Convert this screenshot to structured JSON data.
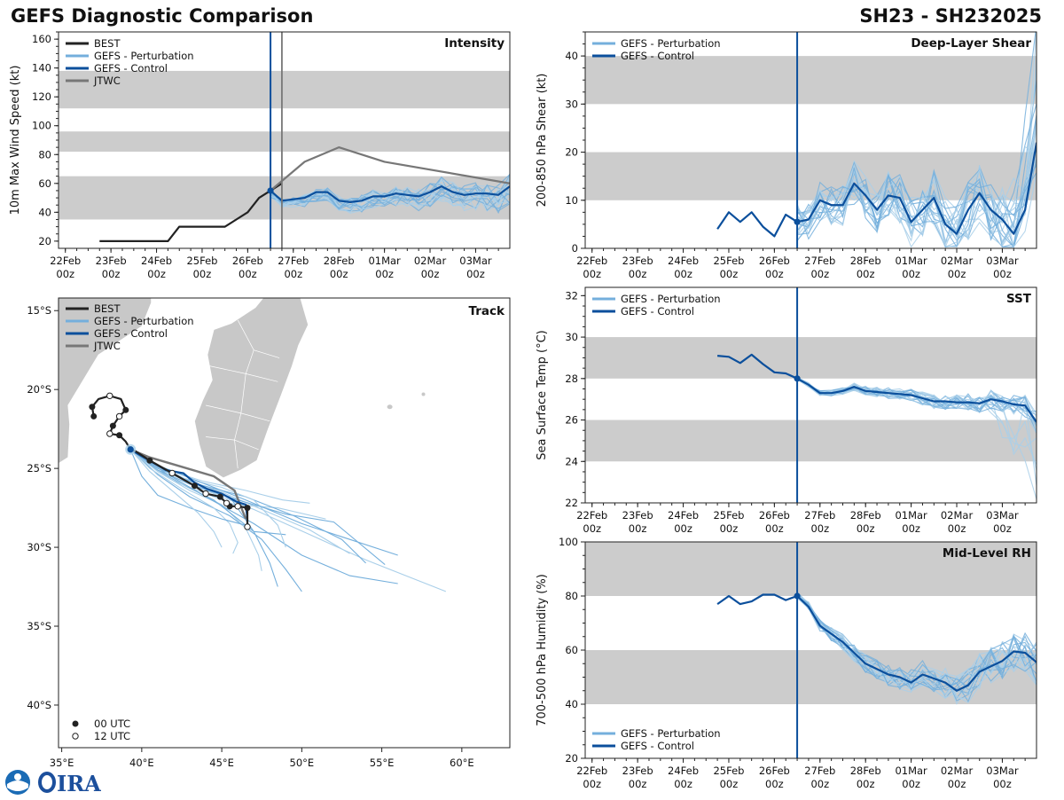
{
  "header": {
    "title_left": "GEFS Diagnostic Comparison",
    "title_right": "SH23 - SH232025"
  },
  "colors": {
    "best": "#222222",
    "perturbation": "#74afdc",
    "perturbation_thin": "#a9cfe9",
    "control": "#0b4f9c",
    "jtwc": "#777777",
    "band": "#cccccc",
    "land": "#c8c8c8"
  },
  "time_axis": {
    "labels_top": [
      "22Feb",
      "23Feb",
      "24Feb",
      "25Feb",
      "26Feb",
      "27Feb",
      "28Feb",
      "01Mar",
      "02Mar",
      "03Mar"
    ],
    "labels_bottom": "00z",
    "range_days": [
      -0.15,
      9.75
    ],
    "analysis_day": 4.5
  },
  "legend": {
    "best": "BEST",
    "perturbation": "GEFS - Perturbation",
    "control": "GEFS - Control",
    "jtwc": "JTWC",
    "utc00": "00 UTC",
    "utc12": "12 UTC"
  },
  "chart_data": [
    {
      "id": "intensity",
      "type": "line",
      "title": "Intensity",
      "ylabel": "10m Max Wind Speed (kt)",
      "ylim": [
        15,
        165
      ],
      "yticks": [
        20,
        40,
        60,
        80,
        100,
        120,
        140,
        160
      ],
      "bands": [
        [
          35,
          65
        ],
        [
          82,
          96
        ],
        [
          112,
          138
        ]
      ],
      "jtwc_issue_day": 4.75,
      "series": [
        {
          "name": "BEST",
          "x": [
            0.75,
            1.0,
            1.25,
            1.5,
            1.75,
            2.0,
            2.25,
            2.5,
            2.75,
            3.0,
            3.25,
            3.5,
            3.75,
            4.0,
            4.25,
            4.5,
            4.75
          ],
          "values": [
            20,
            20,
            20,
            20,
            20,
            20,
            20,
            30,
            30,
            30,
            30,
            30,
            35,
            40,
            50,
            55,
            60
          ]
        },
        {
          "name": "GEFS - Control",
          "x": [
            4.5,
            4.75,
            5.0,
            5.25,
            5.5,
            5.75,
            6.0,
            6.25,
            6.5,
            6.75,
            7.0,
            7.25,
            7.5,
            7.75,
            8.0,
            8.25,
            8.5,
            8.75,
            9.0,
            9.25,
            9.5,
            9.75
          ],
          "values": [
            55,
            48,
            49,
            50,
            54,
            54,
            48,
            47,
            48,
            51,
            51,
            53,
            52,
            51,
            54,
            58,
            54,
            52,
            53,
            53,
            52,
            58
          ]
        },
        {
          "name": "JTWC",
          "x": [
            4.5,
            5.25,
            6.0,
            7.0,
            9.75
          ],
          "values": [
            55,
            75,
            85,
            75,
            60
          ]
        }
      ]
    },
    {
      "id": "shear",
      "type": "line",
      "title": "Deep-Layer Shear",
      "ylabel": "200-850 hPa Shear (kt)",
      "ylim": [
        0,
        45
      ],
      "yticks": [
        0,
        10,
        20,
        30,
        40
      ],
      "bands": [
        [
          10,
          20
        ],
        [
          30,
          40
        ]
      ],
      "series": [
        {
          "name": "GEFS - Control",
          "x": [
            2.75,
            3.0,
            3.25,
            3.5,
            3.75,
            4.0,
            4.25,
            4.5,
            4.75,
            5.0,
            5.25,
            5.5,
            5.75,
            6.0,
            6.25,
            6.5,
            6.75,
            7.0,
            7.25,
            7.5,
            7.75,
            8.0,
            8.25,
            8.5,
            8.75,
            9.0,
            9.25,
            9.5,
            9.75
          ],
          "values": [
            4,
            7.5,
            5.5,
            7.5,
            4.5,
            2.5,
            7,
            5.5,
            6,
            10,
            9,
            9,
            13.5,
            11,
            8,
            11,
            10.5,
            5.5,
            8,
            10.5,
            5,
            3,
            8,
            11.5,
            8,
            6,
            3,
            8,
            22
          ]
        }
      ]
    },
    {
      "id": "sst",
      "type": "line",
      "title": "SST",
      "ylabel": "Sea Surface Temp (°C)",
      "ylim": [
        22,
        32.4
      ],
      "yticks": [
        22,
        24,
        26,
        28,
        30,
        32
      ],
      "bands": [
        [
          24,
          26
        ],
        [
          28,
          30
        ]
      ],
      "series": [
        {
          "name": "GEFS - Control",
          "x": [
            2.75,
            3.0,
            3.25,
            3.5,
            3.75,
            4.0,
            4.25,
            4.5,
            4.75,
            5.0,
            5.25,
            5.5,
            5.75,
            6.0,
            6.25,
            6.5,
            6.75,
            7.0,
            7.25,
            7.5,
            7.75,
            8.0,
            8.25,
            8.5,
            8.75,
            9.0,
            9.25,
            9.5,
            9.75
          ],
          "values": [
            29.1,
            29.05,
            28.75,
            29.15,
            28.7,
            28.3,
            28.25,
            28.0,
            27.7,
            27.3,
            27.3,
            27.4,
            27.6,
            27.4,
            27.35,
            27.3,
            27.25,
            27.2,
            27.05,
            26.9,
            26.9,
            26.85,
            26.85,
            26.8,
            27.0,
            26.9,
            26.75,
            26.7,
            25.9
          ]
        }
      ]
    },
    {
      "id": "rh",
      "type": "line",
      "title": "Mid-Level RH",
      "ylabel": "700-500 hPa Humidity (%)",
      "ylim": [
        20,
        100
      ],
      "yticks": [
        20,
        40,
        60,
        80,
        100
      ],
      "bands": [
        [
          40,
          60
        ],
        [
          80,
          100
        ]
      ],
      "series": [
        {
          "name": "GEFS - Control",
          "x": [
            2.75,
            3.0,
            3.25,
            3.5,
            3.75,
            4.0,
            4.25,
            4.5,
            4.75,
            5.0,
            5.25,
            5.5,
            5.75,
            6.0,
            6.25,
            6.5,
            6.75,
            7.0,
            7.25,
            7.5,
            7.75,
            8.0,
            8.25,
            8.5,
            8.75,
            9.0,
            9.25,
            9.5,
            9.75
          ],
          "values": [
            77,
            80,
            77,
            78,
            80.5,
            80.5,
            78.5,
            80,
            76,
            69,
            66,
            63,
            59,
            55,
            53,
            51,
            50,
            48,
            51,
            49.5,
            48,
            45,
            47,
            52,
            54,
            56,
            59.5,
            59,
            55.5
          ]
        }
      ]
    },
    {
      "id": "track",
      "type": "scatter",
      "title": "Track",
      "lon_range": [
        34.8,
        63
      ],
      "lat_range": [
        -42.7,
        -14.2
      ],
      "lon_ticks": [
        "35°E",
        "40°E",
        "45°E",
        "50°E",
        "55°E",
        "60°E"
      ],
      "lon_tick_values": [
        35,
        40,
        45,
        50,
        55,
        60
      ],
      "lat_ticks": [
        "15°S",
        "20°S",
        "25°S",
        "30°S",
        "35°S",
        "40°S"
      ],
      "lat_tick_values": [
        -15,
        -20,
        -25,
        -30,
        -35,
        -40
      ],
      "best_track": [
        [
          37.0,
          -21.7
        ],
        [
          36.9,
          -21.1
        ],
        [
          37.3,
          -20.6
        ],
        [
          38.0,
          -20.4
        ],
        [
          38.7,
          -20.6
        ],
        [
          39.0,
          -21.3
        ],
        [
          38.6,
          -21.7
        ],
        [
          38.2,
          -22.3
        ],
        [
          38.0,
          -22.8
        ],
        [
          38.6,
          -22.9
        ],
        [
          39.0,
          -23.3
        ],
        [
          39.3,
          -23.8
        ],
        [
          39.6,
          -23.9
        ],
        [
          40.5,
          -24.5
        ],
        [
          41.9,
          -25.3
        ],
        [
          43.3,
          -26.1
        ],
        [
          44.0,
          -26.6
        ],
        [
          44.9,
          -26.8
        ],
        [
          45.3,
          -27.2
        ],
        [
          45.5,
          -27.4
        ],
        [
          46.0,
          -27.4
        ],
        [
          46.6,
          -27.5
        ],
        [
          46.6,
          -28.7
        ]
      ],
      "best_00utc": [
        [
          37.0,
          -21.7
        ],
        [
          36.9,
          -21.1
        ],
        [
          39.0,
          -21.3
        ],
        [
          38.2,
          -22.3
        ],
        [
          38.6,
          -22.9
        ],
        [
          40.5,
          -24.5
        ],
        [
          43.3,
          -26.1
        ],
        [
          44.9,
          -26.8
        ],
        [
          45.5,
          -27.4
        ],
        [
          46.6,
          -27.5
        ]
      ],
      "best_12utc": [
        [
          38.0,
          -20.4
        ],
        [
          38.6,
          -21.7
        ],
        [
          38.0,
          -22.8
        ],
        [
          41.9,
          -25.3
        ],
        [
          44.0,
          -26.6
        ],
        [
          45.3,
          -27.2
        ],
        [
          46.0,
          -27.4
        ],
        [
          46.6,
          -28.7
        ]
      ],
      "control_track": [
        [
          39.3,
          -23.8
        ],
        [
          40.3,
          -24.4
        ],
        [
          41.5,
          -25.1
        ],
        [
          42.6,
          -25.3
        ],
        [
          43.3,
          -25.9
        ],
        [
          44.1,
          -26.3
        ],
        [
          45.0,
          -26.6
        ],
        [
          45.9,
          -27.1
        ],
        [
          46.5,
          -27.3
        ],
        [
          46.6,
          -28.2
        ]
      ],
      "jtwc_track": [
        [
          39.3,
          -23.8
        ],
        [
          40.5,
          -24.3
        ],
        [
          42.5,
          -24.9
        ],
        [
          44.5,
          -25.5
        ],
        [
          45.8,
          -26.4
        ],
        [
          46.5,
          -28.2
        ]
      ],
      "perturbation_tracks": [
        [
          [
            39.3,
            -23.8
          ],
          [
            41.0,
            -24.8
          ],
          [
            43.0,
            -25.8
          ],
          [
            45.0,
            -26.5
          ],
          [
            47.5,
            -27.6
          ],
          [
            50.5,
            -28.9
          ],
          [
            53.0,
            -30.4
          ]
        ],
        [
          [
            39.3,
            -23.8
          ],
          [
            41.2,
            -25.0
          ],
          [
            43.5,
            -26.2
          ],
          [
            46.0,
            -27.0
          ],
          [
            49.0,
            -27.9
          ],
          [
            52.0,
            -28.4
          ],
          [
            55.2,
            -31.1
          ]
        ],
        [
          [
            39.3,
            -23.8
          ],
          [
            41.5,
            -25.2
          ],
          [
            44.0,
            -26.4
          ],
          [
            47.0,
            -27.6
          ],
          [
            50.5,
            -29.2
          ],
          [
            54.0,
            -30.8
          ],
          [
            59.0,
            -32.8
          ]
        ],
        [
          [
            39.3,
            -23.8
          ],
          [
            41.0,
            -25.4
          ],
          [
            43.0,
            -26.8
          ],
          [
            45.5,
            -28.0
          ],
          [
            47.5,
            -29.5
          ],
          [
            49.0,
            -31.4
          ],
          [
            50.0,
            -32.8
          ]
        ],
        [
          [
            39.3,
            -23.8
          ],
          [
            41.0,
            -25.2
          ],
          [
            43.0,
            -26.4
          ],
          [
            45.0,
            -27.3
          ],
          [
            46.5,
            -28.8
          ],
          [
            47.3,
            -30.5
          ],
          [
            47.5,
            -31.5
          ]
        ],
        [
          [
            39.3,
            -23.8
          ],
          [
            40.8,
            -25.0
          ],
          [
            42.5,
            -26.0
          ],
          [
            44.5,
            -27.0
          ],
          [
            46.0,
            -28.2
          ],
          [
            47.0,
            -29.0
          ],
          [
            49.0,
            -29.2
          ]
        ],
        [
          [
            39.3,
            -23.8
          ],
          [
            40.5,
            -24.8
          ],
          [
            42.0,
            -25.8
          ],
          [
            44.0,
            -26.6
          ],
          [
            45.8,
            -27.3
          ],
          [
            48.5,
            -27.5
          ],
          [
            51.5,
            -28.2
          ]
        ],
        [
          [
            39.3,
            -23.8
          ],
          [
            41.0,
            -25.0
          ],
          [
            43.5,
            -26.0
          ],
          [
            46.5,
            -26.8
          ],
          [
            49.5,
            -28.0
          ],
          [
            52.5,
            -29.5
          ],
          [
            54.0,
            -31.0
          ]
        ],
        [
          [
            39.3,
            -23.8
          ],
          [
            40.5,
            -25.0
          ],
          [
            42.5,
            -26.3
          ],
          [
            44.5,
            -27.5
          ],
          [
            45.5,
            -28.5
          ],
          [
            46.0,
            -29.7
          ],
          [
            45.7,
            -30.4
          ]
        ],
        [
          [
            39.3,
            -23.8
          ],
          [
            41.5,
            -25.3
          ],
          [
            44.0,
            -26.8
          ],
          [
            47.0,
            -28.5
          ],
          [
            50.0,
            -30.5
          ],
          [
            53.0,
            -31.8
          ],
          [
            56.0,
            -32.3
          ]
        ],
        [
          [
            39.3,
            -23.8
          ],
          [
            41.0,
            -24.9
          ],
          [
            43.8,
            -25.8
          ],
          [
            46.5,
            -26.4
          ],
          [
            48.8,
            -27.0
          ],
          [
            50.5,
            -27.2
          ]
        ],
        [
          [
            39.3,
            -23.8
          ],
          [
            40.0,
            -25.5
          ],
          [
            41.0,
            -26.7
          ],
          [
            43.0,
            -27.5
          ],
          [
            45.0,
            -28.2
          ],
          [
            46.5,
            -28.6
          ]
        ],
        [
          [
            39.3,
            -23.8
          ],
          [
            40.5,
            -24.6
          ],
          [
            42.5,
            -25.6
          ],
          [
            45.0,
            -26.2
          ],
          [
            47.0,
            -27.0
          ],
          [
            48.5,
            -28.6
          ],
          [
            49.0,
            -30.0
          ]
        ],
        [
          [
            39.3,
            -23.8
          ],
          [
            41.0,
            -25.1
          ],
          [
            43.0,
            -26.0
          ],
          [
            45.5,
            -26.8
          ],
          [
            47.0,
            -29.0
          ],
          [
            48.0,
            -31.0
          ],
          [
            48.5,
            -32.5
          ]
        ],
        [
          [
            39.3,
            -23.8
          ],
          [
            40.5,
            -25.2
          ],
          [
            42.0,
            -26.5
          ],
          [
            43.5,
            -27.8
          ],
          [
            44.5,
            -29.0
          ],
          [
            45.0,
            -30.0
          ]
        ],
        [
          [
            39.3,
            -23.8
          ],
          [
            41.0,
            -24.8
          ],
          [
            43.5,
            -25.8
          ],
          [
            46.5,
            -27.0
          ],
          [
            50.0,
            -28.5
          ],
          [
            53.0,
            -29.5
          ],
          [
            56.0,
            -30.5
          ]
        ]
      ]
    }
  ]
}
